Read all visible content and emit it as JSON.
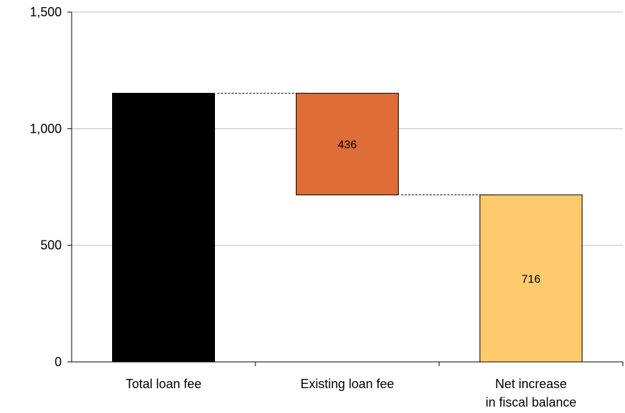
{
  "chart_data": {
    "type": "bar",
    "subtype": "waterfall",
    "title": "",
    "xlabel": "",
    "ylabel": "",
    "ylim": [
      0,
      1500
    ],
    "yticks": [
      0,
      500,
      1000,
      1500
    ],
    "ytick_labels": [
      "0",
      "500",
      "1,000",
      "1,500"
    ],
    "grid": "horizontal",
    "categories": [
      "Total loan fee",
      "Existing loan fee",
      "Net increase\nin fiscal balance"
    ],
    "category_lines": [
      [
        "Total loan fee"
      ],
      [
        "Existing loan fee"
      ],
      [
        "Net increase",
        "in fiscal balance"
      ]
    ],
    "bars": [
      {
        "category": "Total loan fee",
        "base": 0,
        "top": 1152,
        "color": "#000000",
        "label": ""
      },
      {
        "category": "Existing loan fee",
        "base": 716,
        "top": 1152,
        "color": "#de6d37",
        "label": "436"
      },
      {
        "category": "Net increase\nin fiscal balance",
        "base": 0,
        "top": 716,
        "color": "#fdcb6e",
        "label": "716"
      }
    ],
    "connectors": [
      {
        "from": 0,
        "to": 1,
        "value": 1152
      },
      {
        "from": 1,
        "to": 2,
        "value": 716
      }
    ]
  }
}
